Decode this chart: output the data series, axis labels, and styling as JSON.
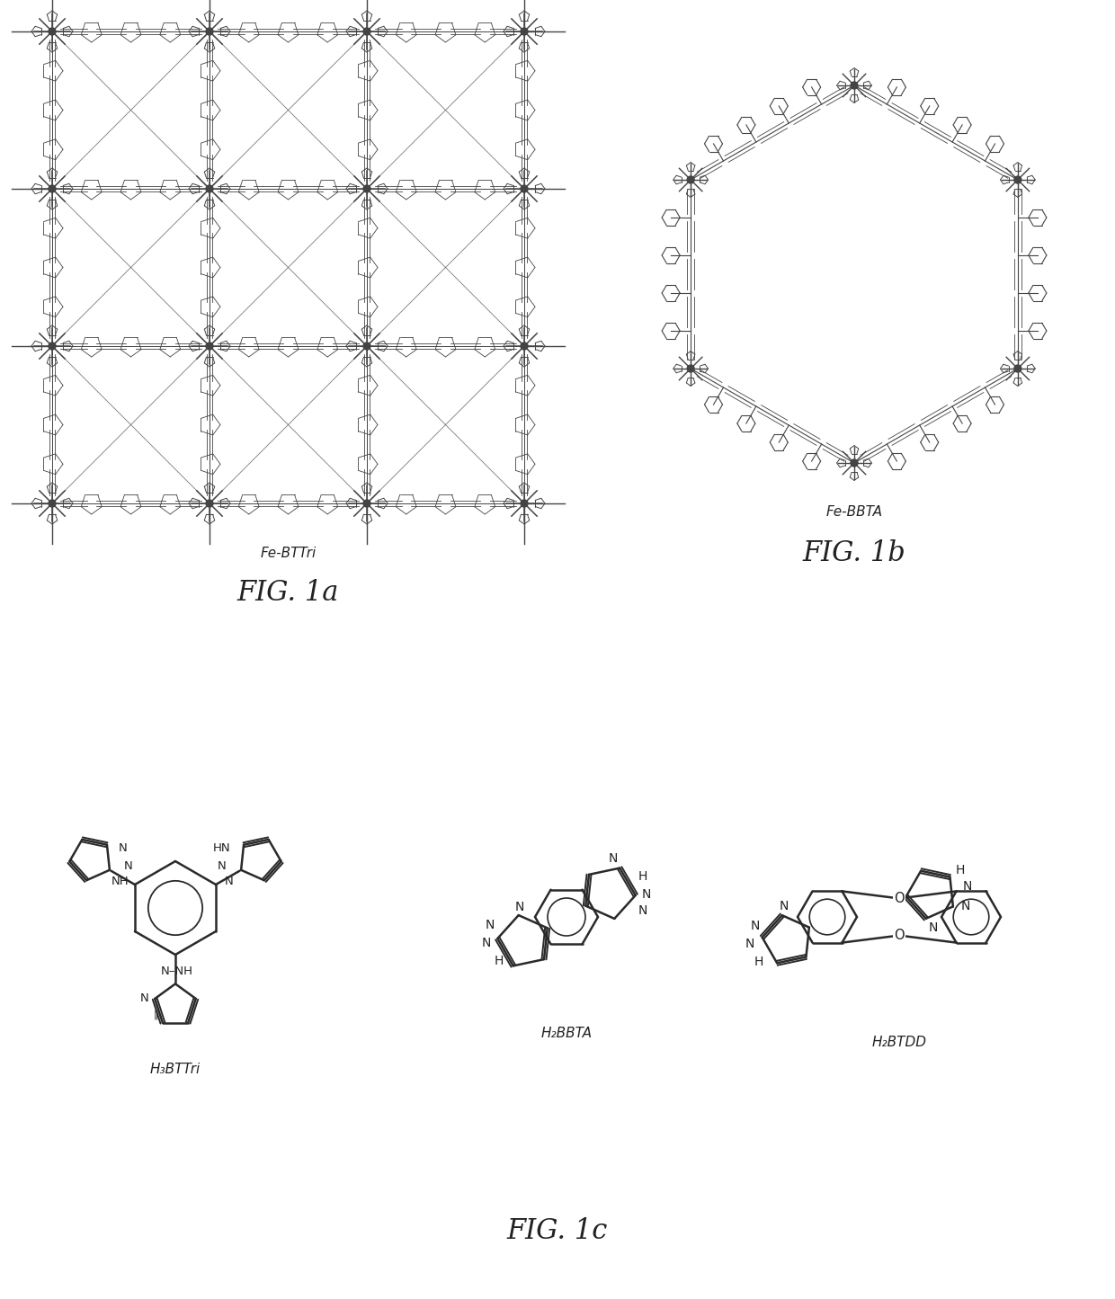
{
  "background_color": "#ffffff",
  "fig_width": 12.4,
  "fig_height": 14.45,
  "dpi": 100,
  "label_fe_bttri": "Fe-BTTri",
  "label_fe_bbta": "Fe-BBTA",
  "label_fig1a": "FIG. 1a",
  "label_fig1b": "FIG. 1b",
  "label_fig1c": "FIG. 1c",
  "label_h3bttri": "H₃BTTri",
  "label_h2bbta": "H₂BBTA",
  "label_h2btdd": "H₂BTDD",
  "text_color": "#222222",
  "line_color": "#2a2a2a",
  "crystal_color": "#444444",
  "font_size_small": 11,
  "font_size_medium": 14,
  "font_size_large": 22
}
